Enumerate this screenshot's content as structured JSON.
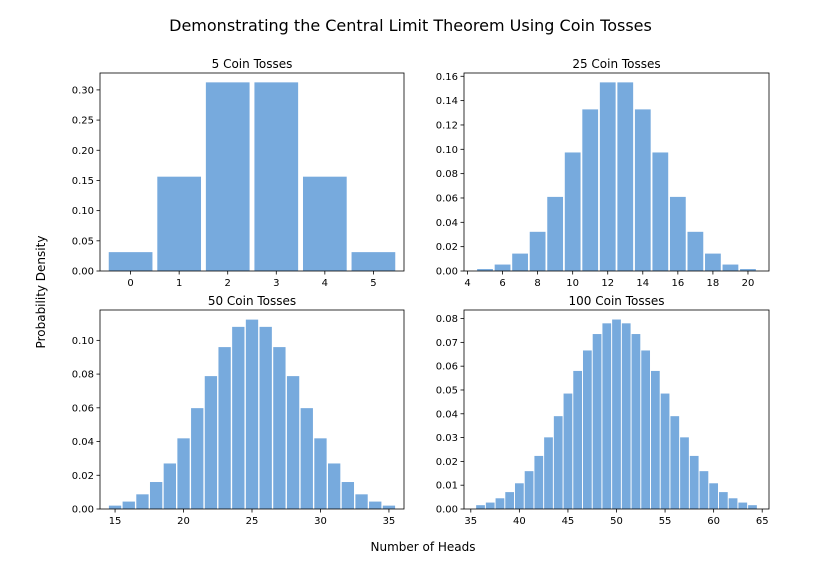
{
  "figure": {
    "title": "Demonstrating the Central Limit Theorem Using Coin Tosses",
    "xlabel": "Number of Heads",
    "ylabel": "Probability Density",
    "bar_color": "#77aadd"
  },
  "chart_data": [
    {
      "type": "bar",
      "title": "5 Coin Tosses",
      "x": [
        0,
        1,
        2,
        3,
        4,
        5
      ],
      "values": [
        0.03125,
        0.15625,
        0.3125,
        0.3125,
        0.15625,
        0.03125
      ],
      "xlim": [
        -0.63,
        5.63
      ],
      "ylim": [
        0,
        0.328
      ],
      "xticks": [
        0,
        1,
        2,
        3,
        4,
        5
      ],
      "yticks": [
        0.0,
        0.05,
        0.1,
        0.15,
        0.2,
        0.25,
        0.3
      ],
      "ytick_decimals": 2,
      "bar_width": 0.9,
      "grid": false
    },
    {
      "type": "bar",
      "title": "25 Coin Tosses",
      "x": [
        5,
        6,
        7,
        8,
        9,
        10,
        11,
        12,
        13,
        14,
        15,
        16,
        17,
        18,
        19,
        20
      ],
      "values": [
        0.0016,
        0.0053,
        0.0143,
        0.0322,
        0.0609,
        0.0974,
        0.1328,
        0.155,
        0.155,
        0.1328,
        0.0974,
        0.0609,
        0.0322,
        0.0143,
        0.0053,
        0.0016
      ],
      "xlim": [
        3.8,
        21.2
      ],
      "ylim": [
        0,
        0.1627
      ],
      "xticks": [
        4,
        6,
        8,
        10,
        12,
        14,
        16,
        18,
        20
      ],
      "yticks": [
        0.0,
        0.02,
        0.04,
        0.06,
        0.08,
        0.1,
        0.12,
        0.14,
        0.16
      ],
      "ytick_decimals": 2,
      "bar_width": 0.9,
      "grid": false
    },
    {
      "type": "bar",
      "title": "50 Coin Tosses",
      "x": [
        15,
        16,
        17,
        18,
        19,
        20,
        21,
        22,
        23,
        24,
        25,
        26,
        27,
        28,
        29,
        30,
        31,
        32,
        33,
        34,
        35
      ],
      "values": [
        0.002,
        0.0044,
        0.0087,
        0.016,
        0.027,
        0.0419,
        0.0598,
        0.0788,
        0.096,
        0.108,
        0.1123,
        0.108,
        0.096,
        0.0788,
        0.0598,
        0.0419,
        0.027,
        0.016,
        0.0087,
        0.0044,
        0.002
      ],
      "xlim": [
        13.9,
        36.1
      ],
      "ylim": [
        0,
        0.118
      ],
      "xticks": [
        15,
        20,
        25,
        30,
        35
      ],
      "yticks": [
        0.0,
        0.02,
        0.04,
        0.06,
        0.08,
        0.1
      ],
      "ytick_decimals": 2,
      "bar_width": 0.9,
      "grid": false
    },
    {
      "type": "bar",
      "title": "100 Coin Tosses",
      "x": [
        36,
        37,
        38,
        39,
        40,
        41,
        42,
        43,
        44,
        45,
        46,
        47,
        48,
        49,
        50,
        51,
        52,
        53,
        54,
        55,
        56,
        57,
        58,
        59,
        60,
        61,
        62,
        63,
        64
      ],
      "values": [
        0.0016,
        0.0027,
        0.0045,
        0.0071,
        0.0108,
        0.0159,
        0.0223,
        0.0301,
        0.039,
        0.0485,
        0.058,
        0.0666,
        0.0735,
        0.078,
        0.0796,
        0.078,
        0.0735,
        0.0666,
        0.058,
        0.0485,
        0.039,
        0.0301,
        0.0223,
        0.0159,
        0.0108,
        0.0071,
        0.0045,
        0.0027,
        0.0016
      ],
      "xlim": [
        34.3,
        65.7
      ],
      "ylim": [
        0,
        0.0836
      ],
      "xticks": [
        35,
        40,
        45,
        50,
        55,
        60,
        65
      ],
      "yticks": [
        0.0,
        0.01,
        0.02,
        0.03,
        0.04,
        0.05,
        0.06,
        0.07,
        0.08
      ],
      "ytick_decimals": 2,
      "bar_width": 0.9,
      "grid": false
    }
  ]
}
